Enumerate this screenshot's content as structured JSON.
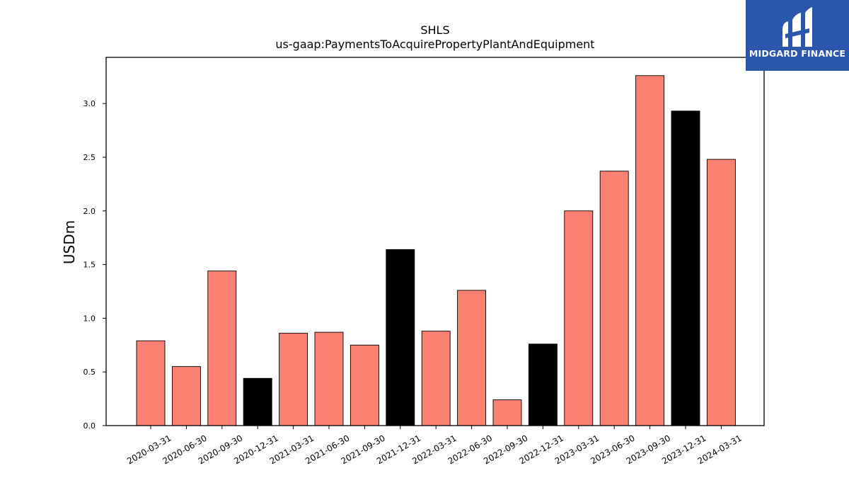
{
  "chart_data": {
    "type": "bar",
    "title": "SHLS",
    "subtitle": "us-gaap:PaymentsToAcquirePropertyPlantAndEquipment",
    "xlabel": "",
    "ylabel": "USDm",
    "ylim": [
      0,
      3.43
    ],
    "yticks": [
      "0.0",
      "0.5",
      "1.0",
      "1.5",
      "2.0",
      "2.5",
      "3.0"
    ],
    "grid": false,
    "categories": [
      "2020-03-31",
      "2020-06-30",
      "2020-09-30",
      "2020-12-31",
      "2021-03-31",
      "2021-06-30",
      "2021-09-30",
      "2021-12-31",
      "2022-03-31",
      "2022-06-30",
      "2022-09-30",
      "2022-12-31",
      "2023-03-31",
      "2023-06-30",
      "2023-09-30",
      "2023-12-31",
      "2024-03-31"
    ],
    "values": [
      0.79,
      0.55,
      1.44,
      0.44,
      0.86,
      0.87,
      0.75,
      1.64,
      0.88,
      1.26,
      0.24,
      0.76,
      2.0,
      2.37,
      3.26,
      2.93,
      2.48
    ],
    "colors": [
      "#fa8072",
      "#fa8072",
      "#fa8072",
      "#000000",
      "#fa8072",
      "#fa8072",
      "#fa8072",
      "#000000",
      "#fa8072",
      "#fa8072",
      "#fa8072",
      "#000000",
      "#fa8072",
      "#fa8072",
      "#fa8072",
      "#000000",
      "#fa8072"
    ]
  },
  "logo": {
    "text": "MIDGARD FINANCE",
    "background": "#2a56ab"
  }
}
